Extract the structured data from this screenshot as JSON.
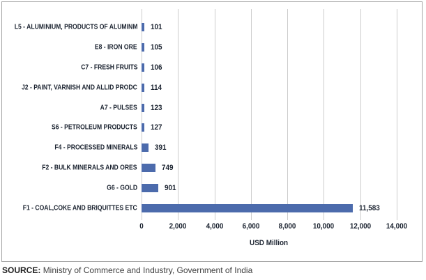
{
  "chart_data": {
    "type": "bar",
    "orientation": "horizontal",
    "categories": [
      "L5 - ALUMINIUM, PRODUCTS OF ALUMINM",
      "E8 - IRON ORE",
      "C7 - FRESH FRUITS",
      "J2 - PAINT, VARNISH AND ALLID PRODC",
      "A7 - PULSES",
      "S6 - PETROLEUM PRODUCTS",
      "F4 - PROCESSED MINERALS",
      "F2 - BULK MINERALS AND ORES",
      "G6 - GOLD",
      "F1 - COAL,COKE AND BRIQUITTES ETC"
    ],
    "values": [
      101,
      105,
      106,
      114,
      123,
      127,
      391,
      749,
      901,
      11583
    ],
    "value_labels": [
      "101",
      "105",
      "106",
      "114",
      "123",
      "127",
      "391",
      "749",
      "901",
      "11,583"
    ],
    "xlabel": "USD Million",
    "xlim": [
      0,
      14000
    ],
    "xticks": [
      {
        "label": "0",
        "value": 0
      },
      {
        "label": "2,000",
        "value": 2000
      },
      {
        "label": "4,000",
        "value": 4000
      },
      {
        "label": "6,000",
        "value": 6000
      },
      {
        "label": "8,000",
        "value": 8000
      },
      {
        "label": "10,000",
        "value": 10000
      },
      {
        "label": "12,000",
        "value": 12000
      },
      {
        "label": "14,000",
        "value": 14000
      }
    ],
    "grid": true,
    "legend": false,
    "bar_color": "#4c6bac",
    "text_color": "#1b2330",
    "gridline_color": "#cccccc",
    "border_color": "#a3a3a3"
  },
  "source": {
    "prefix": "SOURCE:",
    "text": "Ministry of Commerce and Industry, Government of India"
  }
}
